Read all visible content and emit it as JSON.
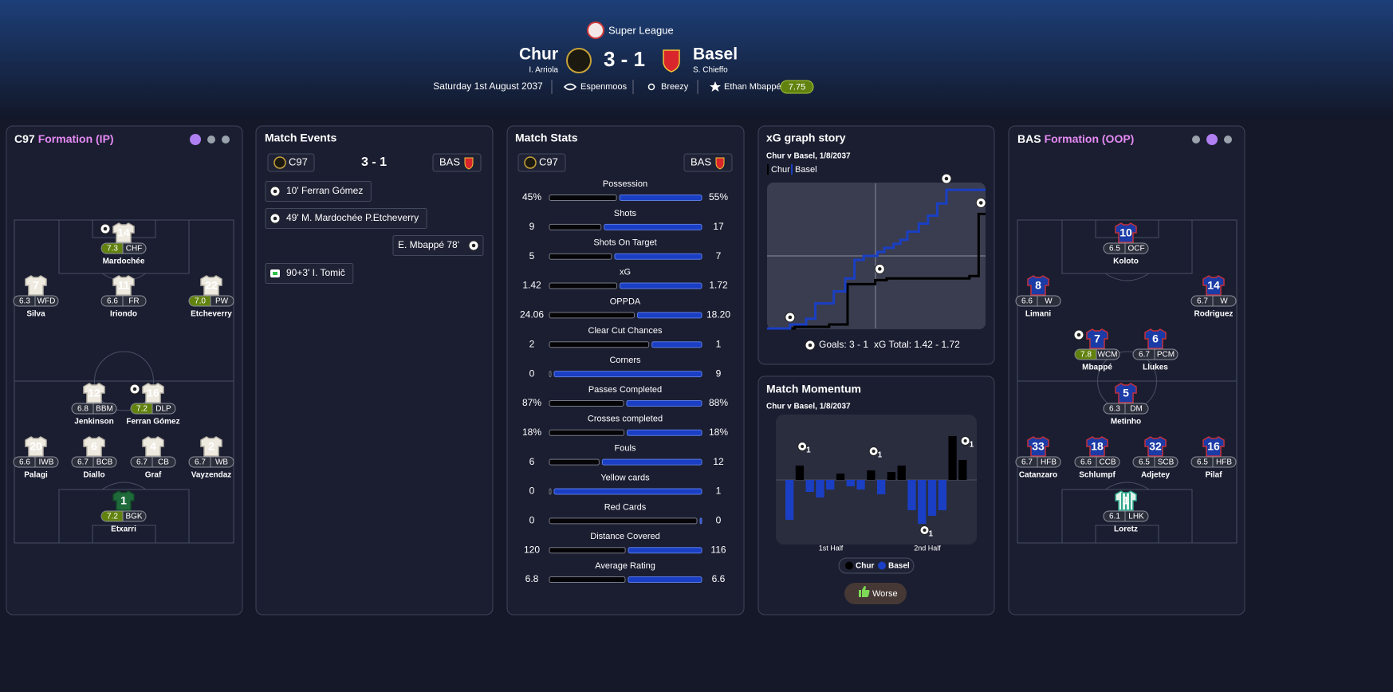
{
  "header": {
    "league": "Super League",
    "home": {
      "name": "Chur",
      "manager": "I. Arriola"
    },
    "score": "3 - 1",
    "away": {
      "name": "Basel",
      "manager": "S. Chieffo"
    },
    "date": "Saturday 1st August 2037",
    "stadium": "Espenmoos",
    "weather": "Breezy",
    "player_of_match": "Ethan Mbappé",
    "player_of_match_rating": "7.75"
  },
  "home_formation": {
    "team": "C97",
    "title": "Formation (IP)",
    "players": [
      {
        "number": "14",
        "rating": "7.3",
        "position": "CHF",
        "name": "Mardochée",
        "goal": true
      },
      {
        "number": "7",
        "rating": "6.3",
        "position": "WFD",
        "name": "Silva"
      },
      {
        "number": "11",
        "rating": "6.6",
        "position": "FR",
        "name": "Iriondo"
      },
      {
        "number": "22",
        "rating": "7.0",
        "position": "PW",
        "name": "Etcheverry"
      },
      {
        "number": "12",
        "rating": "6.8",
        "position": "BBM",
        "name": "Jenkinson"
      },
      {
        "number": "16",
        "rating": "7.2",
        "position": "DLP",
        "name": "Ferran Gómez",
        "goal": true
      },
      {
        "number": "20",
        "rating": "6.6",
        "position": "IWB",
        "name": "Palagi"
      },
      {
        "number": "6",
        "rating": "6.7",
        "position": "BCB",
        "name": "Diallo"
      },
      {
        "number": "4",
        "rating": "6.7",
        "position": "CB",
        "name": "Graf"
      },
      {
        "number": "2",
        "rating": "6.7",
        "position": "WB",
        "name": "Vayzendaz"
      },
      {
        "number": "1",
        "rating": "7.2",
        "position": "BGK",
        "name": "Etxarri"
      }
    ]
  },
  "away_formation": {
    "team": "BAS",
    "title": "Formation (OOP)",
    "players": [
      {
        "number": "10",
        "rating": "6.5",
        "position": "OCF",
        "name": "Koloto"
      },
      {
        "number": "8",
        "rating": "6.6",
        "position": "W",
        "name": "Limani"
      },
      {
        "number": "14",
        "rating": "6.7",
        "position": "W",
        "name": "Rodriguez"
      },
      {
        "number": "7",
        "rating": "7.8",
        "position": "WCM",
        "name": "Mbappé",
        "goal": true
      },
      {
        "number": "6",
        "rating": "6.7",
        "position": "PCM",
        "name": "Llukes"
      },
      {
        "number": "5",
        "rating": "6.3",
        "position": "DM",
        "name": "Metinho"
      },
      {
        "number": "33",
        "rating": "6.7",
        "position": "HFB",
        "name": "Catanzaro"
      },
      {
        "number": "18",
        "rating": "6.6",
        "position": "CCB",
        "name": "Schlumpf"
      },
      {
        "number": "32",
        "rating": "6.5",
        "position": "SCB",
        "name": "Adjetey"
      },
      {
        "number": "16",
        "rating": "6.5",
        "position": "HFB",
        "name": "Pilaf"
      },
      {
        "number": "1",
        "rating": "6.1",
        "position": "LHK",
        "name": "Loretz"
      }
    ]
  },
  "events": {
    "title": "Match Events",
    "home": "C97",
    "score": "3 - 1",
    "away": "BAS",
    "items": [
      {
        "side": "home",
        "type": "goal",
        "text": "10' Ferran Gómez"
      },
      {
        "side": "home",
        "type": "goal",
        "text": "49' M. Mardochée P.Etcheverry"
      },
      {
        "side": "away",
        "type": "goal",
        "text": "E. Mbappé 78'"
      },
      {
        "side": "home",
        "type": "other",
        "text": "90+3' I. Tomič"
      }
    ]
  },
  "stats": {
    "title": "Match Stats",
    "home": "C97",
    "away": "BAS",
    "rows": [
      {
        "label": "Possession",
        "home": "45%",
        "away": "55%"
      },
      {
        "label": "Shots",
        "home": "9",
        "away": "17"
      },
      {
        "label": "Shots On Target",
        "home": "5",
        "away": "7"
      },
      {
        "label": "xG",
        "home": "1.42",
        "away": "1.72"
      },
      {
        "label": "OPPDA",
        "home": "24.06",
        "away": "18.20"
      },
      {
        "label": "Clear Cut Chances",
        "home": "2",
        "away": "1"
      },
      {
        "label": "Corners",
        "home": "0",
        "away": "9"
      },
      {
        "label": "Passes Completed",
        "home": "87%",
        "away": "88%"
      },
      {
        "label": "Crosses completed",
        "home": "18%",
        "away": "18%"
      },
      {
        "label": "Fouls",
        "home": "6",
        "away": "12"
      },
      {
        "label": "Yellow cards",
        "home": "0",
        "away": "1"
      },
      {
        "label": "Red Cards",
        "home": "0",
        "away": "0"
      },
      {
        "label": "Distance Covered",
        "home": "120",
        "away": "116"
      },
      {
        "label": "Average Rating",
        "home": "6.8",
        "away": "6.6"
      }
    ]
  },
  "xg": {
    "type": "line",
    "title": "xG graph story",
    "subtitle": "Chur v Basel, 1/8/2037",
    "goals_label": "Goals: 3 - 1",
    "total_label": "xG Total: 1.42 - 1.72",
    "xlim": [
      0,
      95
    ],
    "ylim": [
      0,
      1.8
    ],
    "series": [
      {
        "name": "Chur",
        "color": "#000000",
        "x": [
          0,
          12,
          12,
          27,
          27,
          35,
          35,
          47,
          47,
          52,
          52,
          88,
          88,
          92,
          92,
          95
        ],
        "values": [
          0,
          0,
          0.02,
          0.02,
          0.05,
          0.05,
          0.55,
          0.55,
          0.6,
          0.6,
          0.62,
          0.62,
          0.65,
          0.65,
          1.42,
          1.42
        ],
        "goals": [
          10,
          49,
          93
        ]
      },
      {
        "name": "Basel",
        "color": "#1a3fc4",
        "x": [
          0,
          10,
          10,
          17,
          17,
          21,
          21,
          29,
          29,
          34,
          34,
          38,
          38,
          42,
          42,
          48,
          48,
          51,
          51,
          55,
          55,
          58,
          58,
          61,
          61,
          66,
          66,
          70,
          70,
          74,
          74,
          78,
          78,
          95
        ],
        "values": [
          0,
          0,
          0.05,
          0.05,
          0.12,
          0.12,
          0.31,
          0.31,
          0.46,
          0.46,
          0.62,
          0.62,
          0.85,
          0.85,
          0.9,
          0.9,
          0.95,
          0.95,
          1.0,
          1.0,
          1.05,
          1.05,
          1.1,
          1.1,
          1.2,
          1.2,
          1.3,
          1.3,
          1.4,
          1.4,
          1.55,
          1.55,
          1.72,
          1.72
        ],
        "goals": [
          78
        ]
      }
    ]
  },
  "momentum": {
    "type": "bar",
    "title": "Match Momentum",
    "subtitle": "Chur v Basel, 1/8/2037",
    "halves": [
      "1st Half",
      "2nd Half"
    ],
    "ylim": [
      -80,
      80
    ],
    "values": [
      -50,
      18,
      -15,
      -22,
      -12,
      8,
      -8,
      -12,
      12,
      -18,
      10,
      18,
      -38,
      -55,
      -45,
      -38,
      55,
      25
    ],
    "goals": [
      {
        "index": 1,
        "label": "1"
      },
      {
        "index": 8,
        "label": "1"
      },
      {
        "index": 13,
        "label": "1"
      },
      {
        "index": 17,
        "label": "1"
      }
    ],
    "legend": [
      {
        "name": "Chur",
        "color": "#000000"
      },
      {
        "name": "Basel",
        "color": "#1a3fc4"
      }
    ],
    "button": "Worse"
  }
}
